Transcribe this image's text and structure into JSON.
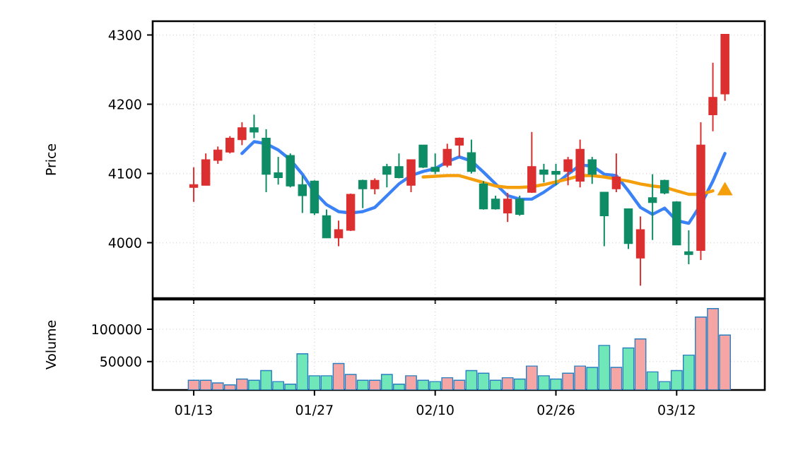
{
  "chart_data": [
    {
      "type": "candlestick",
      "ylabel": "Price",
      "ylim": [
        3920,
        4320
      ],
      "yticks": [
        4000,
        4100,
        4200,
        4300
      ],
      "grid": true,
      "tick_labels": "y",
      "categories": [
        null,
        null,
        null,
        null,
        null,
        null,
        null,
        null,
        null,
        null,
        null,
        null,
        null,
        null,
        null,
        null,
        null,
        null,
        null,
        null,
        null,
        null,
        null,
        null,
        null,
        null,
        null,
        null,
        null,
        null,
        null,
        null,
        null,
        null,
        null,
        null,
        null,
        null,
        null,
        null,
        null,
        null,
        null,
        null,
        null
      ],
      "ohlc": [
        [
          4080,
          4109,
          4059,
          4084
        ],
        [
          4083,
          4129,
          4083,
          4120
        ],
        [
          4119,
          4139,
          4114,
          4134
        ],
        [
          4131,
          4154,
          4129,
          4151
        ],
        [
          4149,
          4174,
          4141,
          4166
        ],
        [
          4166,
          4185,
          4151,
          4160
        ],
        [
          4151,
          4164,
          4073,
          4099
        ],
        [
          4101,
          4124,
          4084,
          4094
        ],
        [
          4126,
          4129,
          4080,
          4082
        ],
        [
          4084,
          4097,
          4043,
          4068
        ],
        [
          4089,
          4090,
          4040,
          4043
        ],
        [
          4039,
          4048,
          4007,
          4007
        ],
        [
          4007,
          4032,
          3995,
          4019
        ],
        [
          4018,
          4071,
          4017,
          4070
        ],
        [
          4090,
          4091,
          4050,
          4078
        ],
        [
          4078,
          4093,
          4070,
          4090
        ],
        [
          4110,
          4114,
          4080,
          4099
        ],
        [
          4110,
          4129,
          4093,
          4094
        ],
        [
          4083,
          4120,
          4073,
          4120
        ],
        [
          4141,
          4141,
          4108,
          4109
        ],
        [
          4109,
          4129,
          4099,
          4103
        ],
        [
          4112,
          4143,
          4109,
          4135
        ],
        [
          4141,
          4152,
          4124,
          4151
        ],
        [
          4130,
          4149,
          4100,
          4103
        ],
        [
          4085,
          4089,
          4048,
          4049
        ],
        [
          4063,
          4068,
          4048,
          4049
        ],
        [
          4043,
          4072,
          4030,
          4063
        ],
        [
          4063,
          4068,
          4039,
          4041
        ],
        [
          4073,
          4160,
          4072,
          4110
        ],
        [
          4105,
          4114,
          4087,
          4099
        ],
        [
          4103,
          4114,
          4083,
          4099
        ],
        [
          4103,
          4124,
          4083,
          4120
        ],
        [
          4089,
          4149,
          4080,
          4135
        ],
        [
          4120,
          4124,
          4085,
          4099
        ],
        [
          4073,
          4073,
          3995,
          4039
        ],
        [
          4078,
          4129,
          4073,
          4095
        ],
        [
          4049,
          4049,
          3991,
          3999
        ],
        [
          3978,
          4038,
          3938,
          4019
        ],
        [
          4065,
          4099,
          4004,
          4058
        ],
        [
          4090,
          4091,
          4070,
          4072
        ],
        [
          4059,
          4060,
          3997,
          3997
        ],
        [
          3987,
          4018,
          3969,
          3983
        ],
        [
          3989,
          4174,
          3975,
          4141
        ],
        [
          4185,
          4260,
          4161,
          4210
        ],
        [
          4215,
          4301,
          4205,
          4301
        ]
      ],
      "colors": [
        "#dc2f2f",
        "#dc2f2f",
        "#dc2f2f",
        "#dc2f2f",
        "#dc2f2f",
        "#0e8c66",
        "#0e8c66",
        "#0e8c66",
        "#0e8c66",
        "#0e8c66",
        "#0e8c66",
        "#0e8c66",
        "#dc2f2f",
        "#dc2f2f",
        "#0e8c66",
        "#dc2f2f",
        "#0e8c66",
        "#0e8c66",
        "#dc2f2f",
        "#0e8c66",
        "#0e8c66",
        "#dc2f2f",
        "#dc2f2f",
        "#0e8c66",
        "#0e8c66",
        "#0e8c66",
        "#dc2f2f",
        "#0e8c66",
        "#dc2f2f",
        "#0e8c66",
        "#0e8c66",
        "#dc2f2f",
        "#dc2f2f",
        "#0e8c66",
        "#0e8c66",
        "#dc2f2f",
        "#0e8c66",
        "#dc2f2f",
        "#0e8c66",
        "#0e8c66",
        "#0e8c66",
        "#0e8c66",
        "#dc2f2f",
        "#dc2f2f",
        "#dc2f2f"
      ],
      "series": [
        {
          "type": "line",
          "color": "#3b82f6",
          "values": [
            null,
            null,
            null,
            null,
            4129,
            4146,
            4143,
            4134,
            4120,
            4099,
            4073,
            4055,
            4045,
            4043,
            4045,
            4051,
            4068,
            4085,
            4097,
            4103,
            4107,
            4117,
            4124,
            4118,
            4102,
            4085,
            4068,
            4063,
            4063,
            4073,
            4085,
            4099,
            4112,
            4111,
            4099,
            4097,
            4075,
            4051,
            4041,
            4050,
            4032,
            4028,
            4055,
            4089,
            4129
          ]
        },
        {
          "type": "line",
          "color": "#f59e0b",
          "values": [
            null,
            null,
            null,
            null,
            null,
            null,
            null,
            null,
            null,
            null,
            null,
            null,
            null,
            null,
            null,
            null,
            null,
            null,
            null,
            4095,
            4096,
            4097,
            4097,
            4092,
            4087,
            4082,
            4080,
            4080,
            4081,
            4084,
            4088,
            4092,
            4097,
            4097,
            4095,
            4092,
            4089,
            4085,
            4082,
            4080,
            4075,
            4070,
            4070,
            4075,
            null
          ]
        },
        {
          "type": "scatter",
          "marker": "triangle",
          "color": "#f59e0b",
          "values": [
            null,
            null,
            null,
            null,
            null,
            null,
            null,
            null,
            null,
            null,
            null,
            null,
            null,
            null,
            null,
            null,
            null,
            null,
            null,
            null,
            null,
            null,
            null,
            null,
            null,
            null,
            null,
            null,
            null,
            null,
            null,
            null,
            null,
            null,
            null,
            null,
            null,
            null,
            null,
            null,
            null,
            null,
            null,
            null,
            4075
          ]
        }
      ]
    },
    {
      "type": "bar",
      "ylabel": "Volume",
      "ylim": [
        6000,
        146000
      ],
      "yticks": [
        50000,
        100000
      ],
      "grid": true,
      "categories": [
        "01/13",
        null,
        null,
        null,
        null,
        null,
        null,
        null,
        null,
        null,
        "01/27",
        null,
        null,
        null,
        null,
        null,
        null,
        null,
        null,
        null,
        "02/10",
        null,
        null,
        null,
        null,
        null,
        null,
        null,
        null,
        null,
        "02/26",
        null,
        null,
        null,
        null,
        null,
        null,
        null,
        null,
        null,
        "03/12",
        null,
        null,
        null,
        null
      ],
      "values": [
        21000,
        21000,
        17000,
        14000,
        23000,
        21000,
        36000,
        19000,
        15000,
        62000,
        28000,
        28000,
        47000,
        30000,
        21000,
        21000,
        30000,
        15000,
        28000,
        21000,
        19000,
        25000,
        21000,
        36000,
        32000,
        21000,
        25000,
        23000,
        43000,
        28000,
        23000,
        32000,
        43000,
        41000,
        75000,
        41000,
        71000,
        85000,
        34000,
        19000,
        36000,
        60000,
        119000,
        132000,
        91000
      ],
      "colors": [
        "#f6a5a5",
        "#f6a5a5",
        "#f6a5a5",
        "#f6a5a5",
        "#f6a5a5",
        "#6fe7b8",
        "#6fe7b8",
        "#6fe7b8",
        "#6fe7b8",
        "#6fe7b8",
        "#6fe7b8",
        "#6fe7b8",
        "#f6a5a5",
        "#f6a5a5",
        "#6fe7b8",
        "#f6a5a5",
        "#6fe7b8",
        "#6fe7b8",
        "#f6a5a5",
        "#6fe7b8",
        "#6fe7b8",
        "#f6a5a5",
        "#f6a5a5",
        "#6fe7b8",
        "#6fe7b8",
        "#6fe7b8",
        "#f6a5a5",
        "#6fe7b8",
        "#f6a5a5",
        "#6fe7b8",
        "#6fe7b8",
        "#f6a5a5",
        "#f6a5a5",
        "#6fe7b8",
        "#6fe7b8",
        "#f6a5a5",
        "#6fe7b8",
        "#f6a5a5",
        "#6fe7b8",
        "#6fe7b8",
        "#6fe7b8",
        "#6fe7b8",
        "#f6a5a5",
        "#f6a5a5",
        "#f6a5a5"
      ]
    }
  ]
}
